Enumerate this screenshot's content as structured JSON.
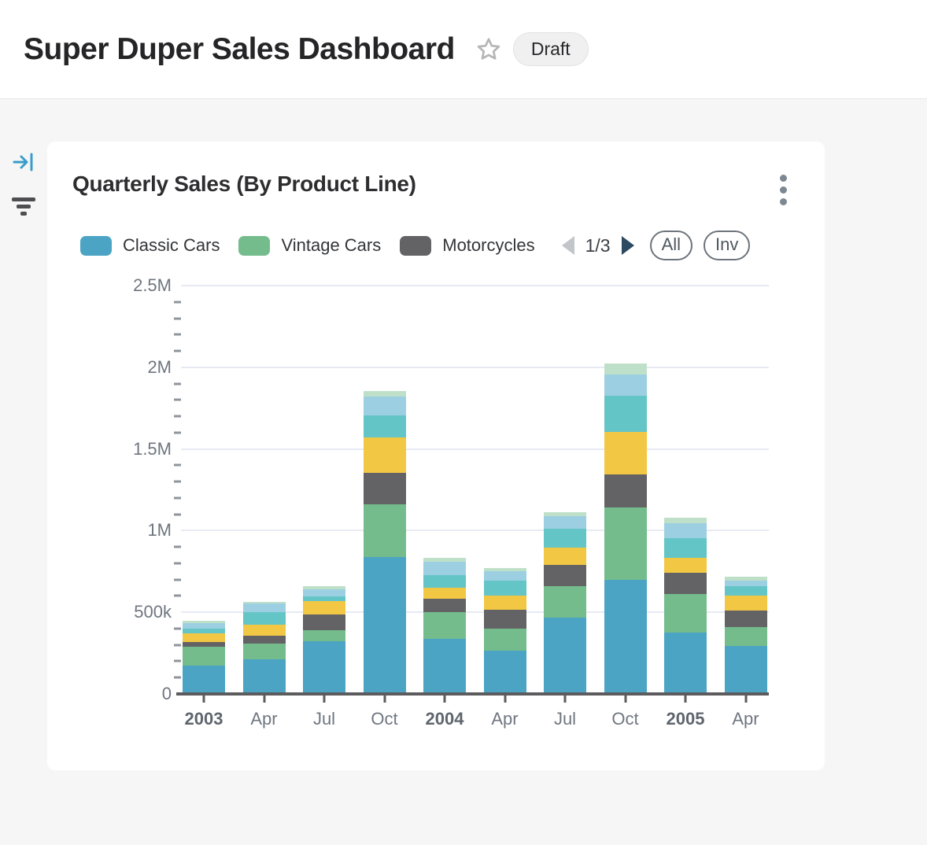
{
  "header": {
    "title": "Super Duper Sales Dashboard",
    "badge": "Draft"
  },
  "panel": {
    "title": "Quarterly Sales (By Product Line)",
    "legend_pager": {
      "label": "1/3",
      "prev_enabled": false,
      "next_enabled": true
    },
    "buttons": {
      "all": "All",
      "inv": "Inv"
    },
    "legend": [
      {
        "label": "Classic Cars",
        "color": "#4ba4c4"
      },
      {
        "label": "Vintage Cars",
        "color": "#74bc8c"
      },
      {
        "label": "Motorcycles",
        "color": "#636365"
      }
    ]
  },
  "icons": {
    "rail_collapse_color": "#3a9dc8",
    "rail_filter_color": "#4e4e50",
    "star_color": "#b5b5b5",
    "kebab_color": "#7d8892"
  },
  "chart_data": {
    "type": "bar",
    "stacked": true,
    "title": "Quarterly Sales (By Product Line)",
    "categories": [
      "2003",
      "Apr",
      "Jul",
      "Oct",
      "2004",
      "Apr",
      "Jul",
      "Oct",
      "2005",
      "Apr"
    ],
    "series": [
      {
        "name": "Classic Cars",
        "color": "#4ba4c4",
        "values": [
          172000,
          214000,
          324000,
          838000,
          338000,
          267000,
          467000,
          700000,
          375000,
          295000
        ]
      },
      {
        "name": "Vintage Cars",
        "color": "#74bc8c",
        "values": [
          115000,
          96000,
          67000,
          323000,
          163000,
          132000,
          193000,
          442000,
          236000,
          116000
        ]
      },
      {
        "name": "Motorcycles",
        "color": "#636365",
        "values": [
          32000,
          45000,
          96000,
          191000,
          84000,
          118000,
          129000,
          204000,
          129000,
          99000
        ]
      },
      {
        "name": null,
        "color": "#f2c744",
        "values": [
          51000,
          70000,
          80000,
          219000,
          64000,
          85000,
          108000,
          257000,
          92000,
          94000
        ]
      },
      {
        "name": null,
        "color": "#64c5c7",
        "values": [
          32000,
          77000,
          29000,
          133000,
          79000,
          91000,
          113000,
          225000,
          122000,
          56000
        ]
      },
      {
        "name": null,
        "color": "#9dcfe2",
        "values": [
          32000,
          54000,
          45000,
          116000,
          80000,
          57000,
          77000,
          128000,
          92000,
          32000
        ]
      },
      {
        "name": null,
        "color": "#bfe0c8",
        "values": [
          12000,
          10000,
          19000,
          35000,
          27000,
          19000,
          27000,
          65000,
          32000,
          27000
        ]
      }
    ],
    "ylim": [
      0,
      2500000
    ],
    "ytick_values": [
      0,
      500000,
      1000000,
      1500000,
      2000000,
      2500000
    ],
    "ytick_labels": [
      "0",
      "500k",
      "1M",
      "1.5M",
      "2M",
      "2.5M"
    ],
    "minor_tick_step": 100000,
    "grid": true,
    "legend_position": "top",
    "legend_note": "legend paginated 1/3, only first 3 of 7 series labeled on screen"
  }
}
